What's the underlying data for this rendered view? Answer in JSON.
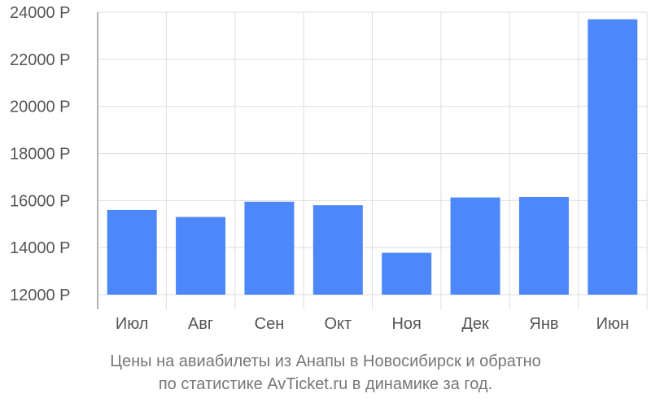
{
  "chart_data": {
    "type": "bar",
    "categories": [
      "Июл",
      "Авг",
      "Сен",
      "Окт",
      "Ноя",
      "Дек",
      "Янв",
      "Июн"
    ],
    "values": [
      15600,
      15300,
      15950,
      15800,
      13780,
      16130,
      16150,
      23700
    ],
    "ylim": [
      12000,
      24000
    ],
    "yticks": [
      12000,
      14000,
      16000,
      18000,
      20000,
      22000,
      24000
    ],
    "ytick_labels": [
      "12000 Р",
      "14000 Р",
      "16000 Р",
      "18000 Р",
      "20000 Р",
      "22000 Р",
      "24000 Р"
    ],
    "grid": true,
    "legend": "none",
    "bar_color": "#4d88fb",
    "title": ""
  },
  "caption": {
    "line1": "Цены на авиабилеты из Анапы в Новосибирск и обратно",
    "line2": "по статистике AvTicket.ru в динамике за год."
  }
}
